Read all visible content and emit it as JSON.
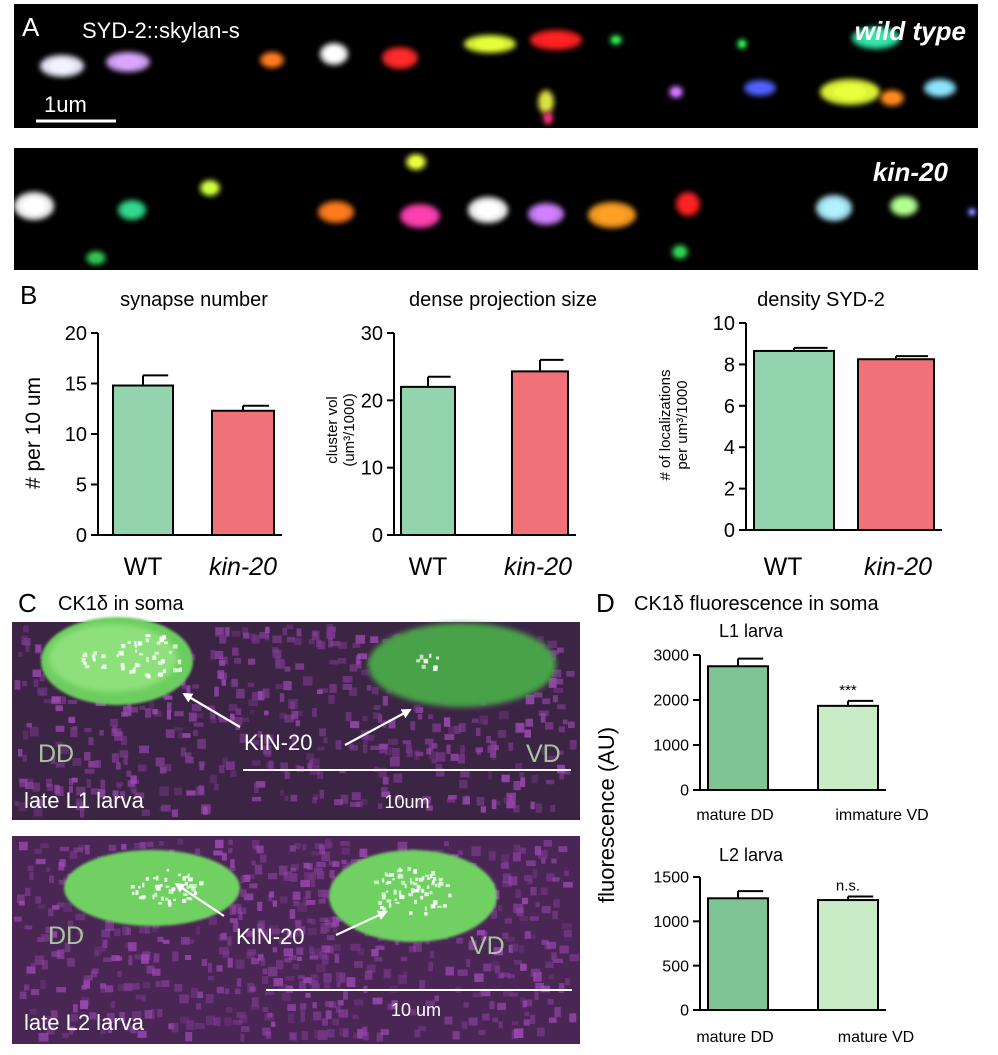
{
  "panelA": {
    "letter": "A",
    "label": "SYD-2::skylan-s",
    "scalebar": "1um",
    "wt_label": "wild type",
    "mutant_label": "kin-20"
  },
  "panelB": {
    "letter": "B",
    "charts": [
      {
        "title": "synapse number",
        "ylabel": "# per 10 um",
        "ylabel2": ""
      },
      {
        "title": "dense projection size",
        "ylabel": "cluster vol",
        "ylabel2": "(um³/1000)"
      },
      {
        "title": "density SYD-2",
        "ylabel": "# of localizations",
        "ylabel2": "per um³/1000"
      }
    ],
    "xlabels": [
      "WT",
      "kin-20"
    ]
  },
  "panelC": {
    "letter": "C",
    "title": "CK1δ in soma",
    "top": {
      "left_cell": "DD",
      "right_cell": "VD",
      "arrow_label": "KIN-20",
      "scale": "10um",
      "stage": "late L1 larva"
    },
    "bottom": {
      "left_cell": "DD",
      "right_cell": "VD",
      "arrow_label": "KIN-20",
      "scale": "10 um",
      "stage": "late L2 larva"
    }
  },
  "panelD": {
    "letter": "D",
    "title": "CK1δ fluorescence in soma",
    "ylabel": "fluorescence (AU)",
    "charts": [
      {
        "title": "L1 larva",
        "significance": "***"
      },
      {
        "title": "L2 larva",
        "significance": "n.s."
      }
    ]
  },
  "colors": {
    "wt_bar": "#93d3ae",
    "mutant_bar": "#f07178",
    "mature_bar": "#7fc494",
    "immature_bar": "#c9ecc6",
    "cell_green": "#7bd66c",
    "magenta_bg": "#5a2c62"
  },
  "chart_data": [
    {
      "type": "bar",
      "title": "synapse number",
      "ylabel": "# per 10 um",
      "categories": [
        "WT",
        "kin-20"
      ],
      "values": [
        14.8,
        12.3
      ],
      "errors": [
        1.0,
        0.5
      ],
      "ylim": [
        0,
        20
      ],
      "yticks": [
        0,
        5,
        10,
        15,
        20
      ]
    },
    {
      "type": "bar",
      "title": "dense projection size",
      "ylabel": "cluster vol (um³/1000)",
      "categories": [
        "WT",
        "kin-20"
      ],
      "values": [
        22.0,
        24.3
      ],
      "errors": [
        1.5,
        1.7
      ],
      "ylim": [
        0,
        30
      ],
      "yticks": [
        0,
        10,
        20,
        30
      ]
    },
    {
      "type": "bar",
      "title": "density SYD-2",
      "ylabel": "# of localizations per um³/1000",
      "categories": [
        "WT",
        "kin-20"
      ],
      "values": [
        8.65,
        8.25
      ],
      "errors": [
        0.15,
        0.15
      ],
      "ylim": [
        0,
        10
      ],
      "yticks": [
        0,
        2,
        4,
        6,
        8,
        10
      ]
    },
    {
      "type": "bar",
      "title": "L1 larva",
      "ylabel": "fluorescence (AU)",
      "categories": [
        "mature DD",
        "immature VD"
      ],
      "values": [
        2750,
        1870
      ],
      "errors": [
        170,
        110
      ],
      "ylim": [
        0,
        3000
      ],
      "yticks": [
        0,
        1000,
        2000,
        3000
      ]
    },
    {
      "type": "bar",
      "title": "L2 larva",
      "ylabel": "fluorescence (AU)",
      "categories": [
        "mature DD",
        "mature VD"
      ],
      "values": [
        1260,
        1240
      ],
      "errors": [
        80,
        40
      ],
      "ylim": [
        0,
        1500
      ],
      "yticks": [
        0,
        500,
        1000,
        1500
      ]
    }
  ]
}
